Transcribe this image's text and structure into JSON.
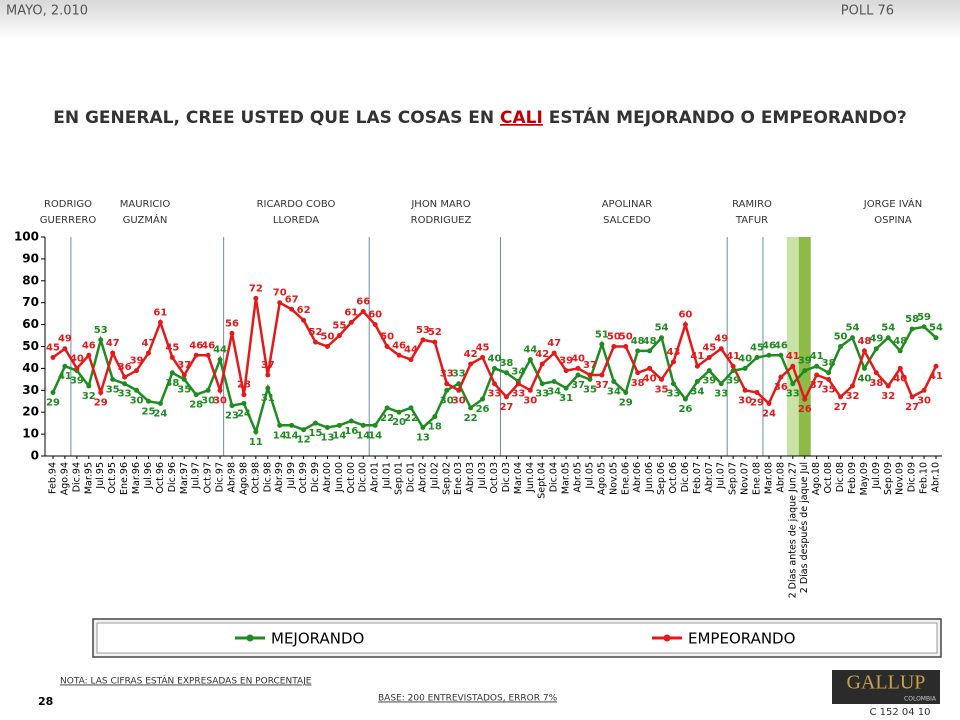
{
  "header": {
    "date": "MAYO, 2.010",
    "poll": "POLL 76"
  },
  "chart_data": {
    "type": "line",
    "title": [
      "EN GENERAL, CREE USTED QUE LAS COSAS EN ",
      "CALI",
      " ESTÁN MEJORANDO O EMPEORANDO?"
    ],
    "annotations": [
      [
        "RODRIGO",
        "GUERRERO"
      ],
      [
        "MAURICIO",
        "GUZMÁN"
      ],
      [
        "RICARDO COBO",
        "LLOREDA"
      ],
      [
        "JHON MARO",
        "RODRIGUEZ"
      ],
      [
        "APOLINAR",
        "SALCEDO"
      ],
      [
        "RAMIRO",
        "TAFUR"
      ],
      [
        "JORGE IVÁN",
        "OSPINA"
      ]
    ],
    "categories": [
      "Feb.94",
      "Ago.94",
      "Dic.94",
      "Mar.95",
      "Jul.95",
      "Oct.95",
      "Ene.96",
      "Mar.96",
      "Jul.96",
      "Oct.96",
      "Dic.96",
      "Mar.97",
      "Jul.97",
      "Oct.97",
      "Dic.97",
      "Abr.98",
      "Ago.98",
      "Oct.98",
      "Dic.98",
      "Abr.99",
      "Jul.99",
      "Oct.99",
      "Dic.99",
      "Abr.00",
      "Jun.00",
      "Oct.00",
      "Dic.00",
      "Abr.01",
      "Jul.01",
      "Sep.01",
      "Dic.01",
      "Abr.02",
      "Jul.02",
      "Sep.02",
      "Ene.03",
      "Abr.03",
      "Jul.03",
      "Oct.03",
      "Dic.03",
      "Mar.04",
      "Jun.04",
      "Sept.04",
      "Dic.04",
      "Mar.05",
      "Abr.05",
      "Jul.05",
      "Ago.05",
      "Nov.05",
      "Ene.06",
      "Abr.06",
      "Jun.06",
      "Sep.06",
      "Oct.06",
      "Dic.06",
      "Feb.07",
      "Abr.07",
      "Jul.07",
      "Sep.07",
      "Nov.07",
      "Ene.08",
      "Mar.08",
      "Abr.08",
      "2 Días antes de jaque Jun.27",
      "2 Días después de jaque Jul",
      "Ago.08",
      "Oct.08",
      "Dic.08",
      "Feb.09",
      "May.09",
      "Jul.09",
      "Sep.09",
      "Nov.09",
      "Dic.09",
      "Feb.10",
      "Abr.10"
    ],
    "series": [
      {
        "name": "MEJORANDO",
        "color": "#1e8c1e",
        "values": [
          29,
          41,
          39,
          32,
          53,
          35,
          33,
          30,
          25,
          24,
          38,
          35,
          28,
          30,
          44,
          23,
          24,
          11,
          31,
          14,
          14,
          12,
          15,
          13,
          14,
          16,
          14,
          14,
          22,
          20,
          22,
          13,
          18,
          30,
          33,
          22,
          26,
          40,
          38,
          34,
          44,
          33,
          34,
          31,
          37,
          35,
          51,
          34,
          29,
          48,
          48,
          54,
          33,
          26,
          34,
          39,
          33,
          39,
          40,
          45,
          46,
          46,
          33,
          39,
          41,
          38,
          50,
          54,
          40,
          49,
          54,
          48,
          58,
          59,
          54
        ]
      },
      {
        "name": "EMPEORANDO",
        "color": "#e41a1a",
        "values": [
          45,
          49,
          40,
          46,
          29,
          47,
          36,
          39,
          47,
          61,
          45,
          37,
          46,
          46,
          30,
          56,
          28,
          72,
          37,
          70,
          67,
          62,
          52,
          50,
          55,
          61,
          66,
          60,
          50,
          46,
          44,
          53,
          52,
          33,
          30,
          42,
          45,
          33,
          27,
          33,
          30,
          42,
          47,
          39,
          40,
          37,
          37,
          50,
          50,
          38,
          40,
          35,
          43,
          60,
          41,
          45,
          49,
          41,
          30,
          29,
          24,
          36,
          41,
          26,
          37,
          35,
          27,
          32,
          48,
          38,
          32,
          40,
          27,
          30,
          41
        ]
      }
    ],
    "ylim": [
      0,
      100
    ],
    "yticks": [
      0,
      10,
      20,
      30,
      40,
      50,
      60,
      70,
      80,
      90,
      100
    ],
    "grid": false
  },
  "footer": {
    "note": "NOTA: LAS CIFRAS ESTÁN EXPRESADAS EN PORCENTAJE",
    "page": "28",
    "base": "BASE: 200 ENTREVISTADOS, ERROR 7%",
    "logo": "GALLUP",
    "logo_sub": "COLOMBIA",
    "code": "C 152 04 10"
  }
}
